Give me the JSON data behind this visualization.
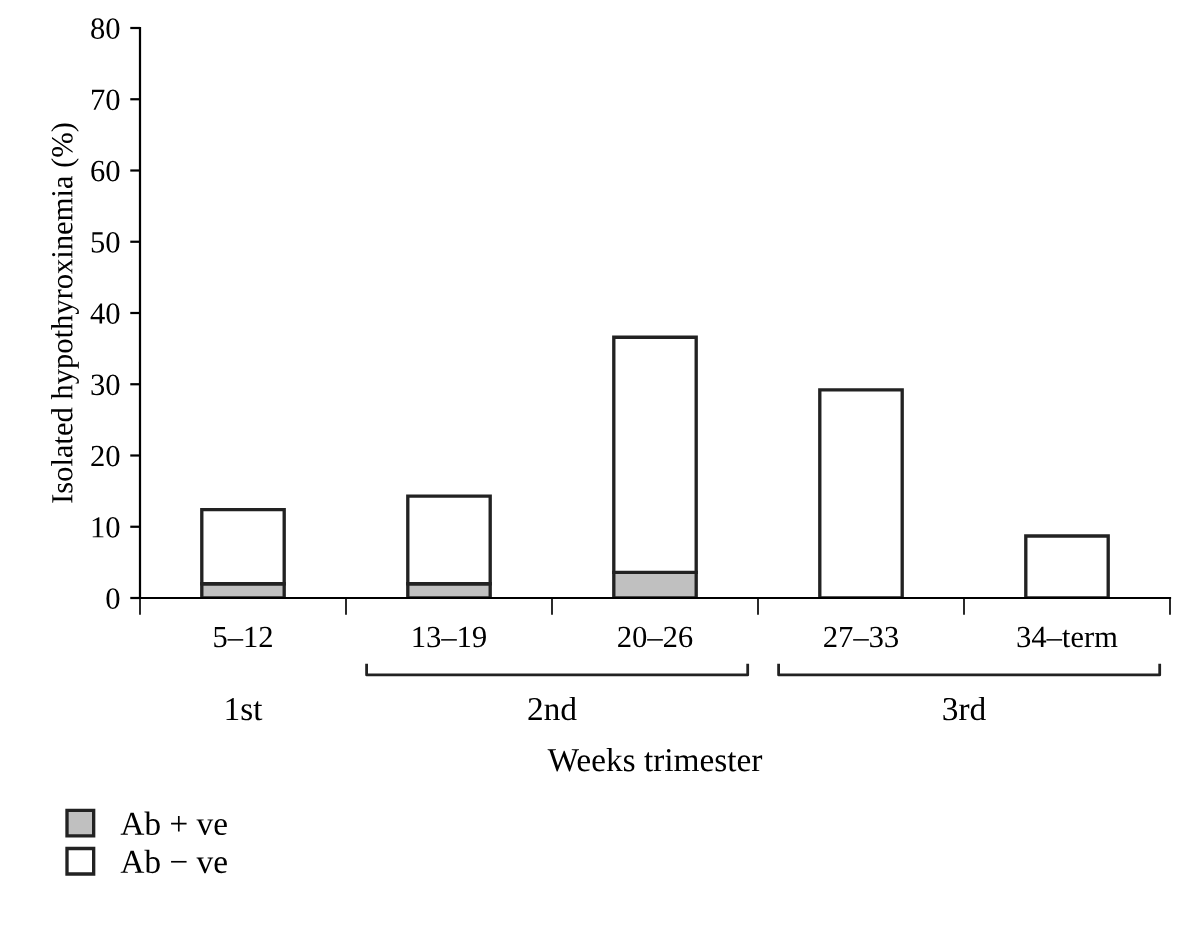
{
  "chart_data": {
    "type": "bar",
    "stacked": true,
    "categories": [
      "5–12",
      "13–19",
      "20–26",
      "27–33",
      "34–term"
    ],
    "series": [
      {
        "name": "Ab + ve",
        "color": "#c0c0c0",
        "values": [
          2,
          2,
          3.6,
          0,
          0
        ]
      },
      {
        "name": "Ab − ve",
        "color": "#ffffff",
        "values": [
          10.4,
          12.3,
          33,
          29.2,
          8.7
        ]
      }
    ],
    "xlabel": "Weeks trimester",
    "ylabel": "Isolated hypothyroxinemia (%)",
    "ylim": [
      0,
      80
    ],
    "yticks": [
      0,
      10,
      20,
      30,
      40,
      50,
      60,
      70,
      80
    ],
    "annotations": [
      "1st",
      "2nd",
      "3rd"
    ],
    "legend": "bottom left",
    "grid": false
  }
}
